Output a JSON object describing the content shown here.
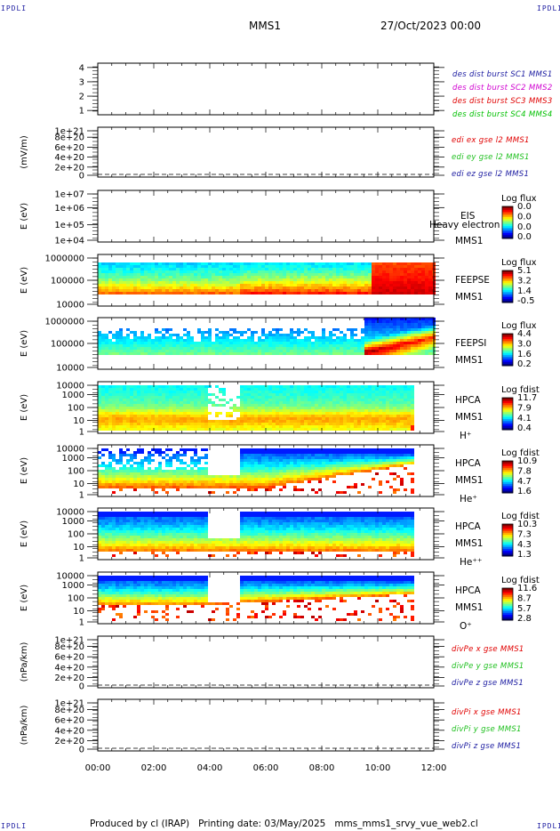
{
  "header": {
    "corner_label": "IPDLI",
    "mission": "MMS1",
    "datetime": "27/Oct/2023 00:00"
  },
  "footer": {
    "produced_by": "Produced by cl (IRAP)",
    "printing_date": "Printing date: 03/May/2025",
    "filename": "mms_mms1_srvy_vue_web2.cl"
  },
  "colors": {
    "mms1": "#1a1aa0",
    "mms2": "#d000d0",
    "mms3": "#e00000",
    "mms4": "#00c000",
    "x_comp": "#e00000",
    "y_comp": "#20c020",
    "z_comp": "#1a1aa0"
  },
  "chart_data": [
    {
      "type": "line",
      "panel": "dist-burst",
      "ylabel": "",
      "yticks": [
        "1",
        "2",
        "3",
        "4"
      ],
      "ylim": [
        0.7,
        4.3
      ],
      "legend": [
        {
          "text": "des dist burst SC1 MMS1",
          "color": "#1a1aa0"
        },
        {
          "text": "des dist burst SC2 MMS2",
          "color": "#d000d0"
        },
        {
          "text": "des dist burst SC3 MMS3",
          "color": "#e00000"
        },
        {
          "text": "des dist burst SC4 MMS4",
          "color": "#00c000"
        }
      ],
      "series": []
    },
    {
      "type": "line",
      "panel": "edi-e-gse",
      "ylabel": "(mV/m)",
      "yticks": [
        "0",
        "2e+20",
        "4e+20",
        "6e+20",
        "8e+20",
        "1e+21"
      ],
      "ylim": [
        0,
        1.1e+21
      ],
      "legend": [
        {
          "text": "edi ex gse l2 MMS1",
          "color": "#e00000"
        },
        {
          "text": "edi ey gse l2 MMS1",
          "color": "#20c020"
        },
        {
          "text": "edi ez gse l2 MMS1",
          "color": "#1a1aa0"
        }
      ],
      "zero_line": true,
      "series": []
    },
    {
      "type": "heatmap",
      "panel": "eis",
      "ylabel": "E (eV)",
      "yticks": [
        "1e+04",
        "1e+05",
        "1e+06",
        "1e+07"
      ],
      "instrument": [
        "EIS",
        "MMS1"
      ],
      "overlay_text": "Heavy electron to",
      "colorbar": {
        "title": "Log flux",
        "ticks": [
          "0.0",
          "0.0",
          "0.0",
          "0.0"
        ]
      },
      "series": []
    },
    {
      "type": "heatmap",
      "panel": "feeps-e",
      "ylabel": "E (eV)",
      "yticks": [
        "10000",
        "100000",
        "1000000"
      ],
      "instrument": [
        "FEEPSE",
        "MMS1"
      ],
      "colorbar": {
        "title": "Log flux",
        "ticks": [
          "5.1",
          "3.2",
          "1.4",
          "-0.5"
        ]
      },
      "data_end_hour": 12
    },
    {
      "type": "heatmap",
      "panel": "feeps-i",
      "ylabel": "E (eV)",
      "yticks": [
        "10000",
        "100000",
        "1000000"
      ],
      "instrument": [
        "FEEPSI",
        "MMS1"
      ],
      "colorbar": {
        "title": "Log flux",
        "ticks": [
          "4.4",
          "3.0",
          "1.6",
          "0.2"
        ]
      },
      "data_end_hour": 12
    },
    {
      "type": "heatmap",
      "panel": "hpca-h",
      "ylabel": "E (eV)",
      "yticks": [
        "1",
        "10",
        "100",
        "1000",
        "10000"
      ],
      "instrument": [
        "HPCA",
        "MMS1"
      ],
      "species": "H⁺",
      "colorbar": {
        "title": "Log fdist",
        "ticks": [
          "11.7",
          "7.9",
          "4.1",
          "0.4"
        ]
      },
      "data_end_hour": 11.2
    },
    {
      "type": "heatmap",
      "panel": "hpca-he",
      "ylabel": "E (eV)",
      "yticks": [
        "1",
        "10",
        "100",
        "1000",
        "10000"
      ],
      "instrument": [
        "HPCA",
        "MMS1"
      ],
      "species": "He⁺",
      "colorbar": {
        "title": "Log fdist",
        "ticks": [
          "10.9",
          "7.8",
          "4.7",
          "1.6"
        ]
      },
      "data_end_hour": 11.2
    },
    {
      "type": "heatmap",
      "panel": "hpca-hepp",
      "ylabel": "E (eV)",
      "yticks": [
        "1",
        "10",
        "100",
        "1000",
        "10000"
      ],
      "instrument": [
        "HPCA",
        "MMS1"
      ],
      "species": "He⁺⁺",
      "colorbar": {
        "title": "Log fdist",
        "ticks": [
          "10.3",
          "7.3",
          "4.3",
          "1.3"
        ]
      },
      "data_end_hour": 11.2
    },
    {
      "type": "heatmap",
      "panel": "hpca-o",
      "ylabel": "E (eV)",
      "yticks": [
        "1",
        "10",
        "100",
        "1000",
        "10000"
      ],
      "instrument": [
        "HPCA",
        "MMS1"
      ],
      "species": "O⁺",
      "colorbar": {
        "title": "Log fdist",
        "ticks": [
          "11.6",
          "8.7",
          "5.7",
          "2.8"
        ]
      },
      "data_end_hour": 11.2
    },
    {
      "type": "line",
      "panel": "divpe",
      "ylabel": "(nPa/km)",
      "yticks": [
        "0",
        "2e+20",
        "4e+20",
        "6e+20",
        "8e+20",
        "1e+21"
      ],
      "ylim": [
        0,
        1.1e+21
      ],
      "legend": [
        {
          "text": "divPe x gse MMS1",
          "color": "#e00000"
        },
        {
          "text": "divPe y gse MMS1",
          "color": "#20c020"
        },
        {
          "text": "divPe z gse MMS1",
          "color": "#1a1aa0"
        }
      ],
      "zero_line": true,
      "series": []
    },
    {
      "type": "line",
      "panel": "divpi",
      "ylabel": "(nPa/km)",
      "yticks": [
        "0",
        "2e+20",
        "4e+20",
        "6e+20",
        "8e+20",
        "1e+21"
      ],
      "ylim": [
        0,
        1.1e+21
      ],
      "legend": [
        {
          "text": "divPi x gse MMS1",
          "color": "#e00000"
        },
        {
          "text": "divPi y gse MMS1",
          "color": "#20c020"
        },
        {
          "text": "divPi z gse MMS1",
          "color": "#1a1aa0"
        }
      ],
      "zero_line": true,
      "series": []
    }
  ],
  "x_axis": {
    "ticks": [
      "00:00",
      "02:00",
      "04:00",
      "06:00",
      "08:00",
      "10:00",
      "12:00"
    ],
    "range_hours": [
      0,
      12
    ]
  }
}
